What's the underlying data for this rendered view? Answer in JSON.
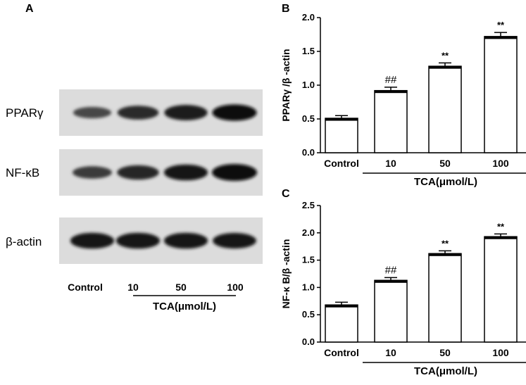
{
  "panel_a": {
    "letter": "A",
    "rows": [
      {
        "label": "PPARγ",
        "intensity": [
          0.45,
          0.7,
          0.85,
          0.95
        ]
      },
      {
        "label": "NF-κB",
        "intensity": [
          0.55,
          0.75,
          0.9,
          1.0
        ]
      },
      {
        "label": "β-actin",
        "intensity": [
          0.9,
          0.9,
          0.9,
          0.88
        ]
      }
    ],
    "categories": [
      "Control",
      "10",
      "50",
      "100"
    ],
    "group_label": "TCA(μmol/L)"
  },
  "chart_data": [
    {
      "type": "bar",
      "panel": "B",
      "categories": [
        "Control",
        "10",
        "50",
        "100"
      ],
      "values": [
        0.51,
        0.92,
        1.28,
        1.72
      ],
      "errors": [
        0.04,
        0.05,
        0.05,
        0.06
      ],
      "annotations": [
        "",
        "##",
        "**",
        "**"
      ],
      "ylabel": "PPARγ /β -actin",
      "group_label": "TCA(μmol/L)",
      "ylim": [
        0,
        2.0
      ],
      "yticks": [
        "0.0",
        "0.5",
        "1.0",
        "1.5",
        "2.0"
      ],
      "ytick_values": [
        0,
        0.5,
        1.0,
        1.5,
        2.0
      ]
    },
    {
      "type": "bar",
      "panel": "C",
      "categories": [
        "Control",
        "10",
        "50",
        "100"
      ],
      "values": [
        0.68,
        1.13,
        1.62,
        1.93
      ],
      "errors": [
        0.05,
        0.05,
        0.05,
        0.05
      ],
      "annotations": [
        "",
        "##",
        "**",
        "**"
      ],
      "ylabel": "NF-κ B/β -actin",
      "group_label": "TCA(μmol/L)",
      "ylim": [
        0,
        2.5
      ],
      "yticks": [
        "0.0",
        "0.5",
        "1.0",
        "1.5",
        "2.0",
        "2.5"
      ],
      "ytick_values": [
        0,
        0.5,
        1.0,
        1.5,
        2.0,
        2.5
      ]
    }
  ]
}
